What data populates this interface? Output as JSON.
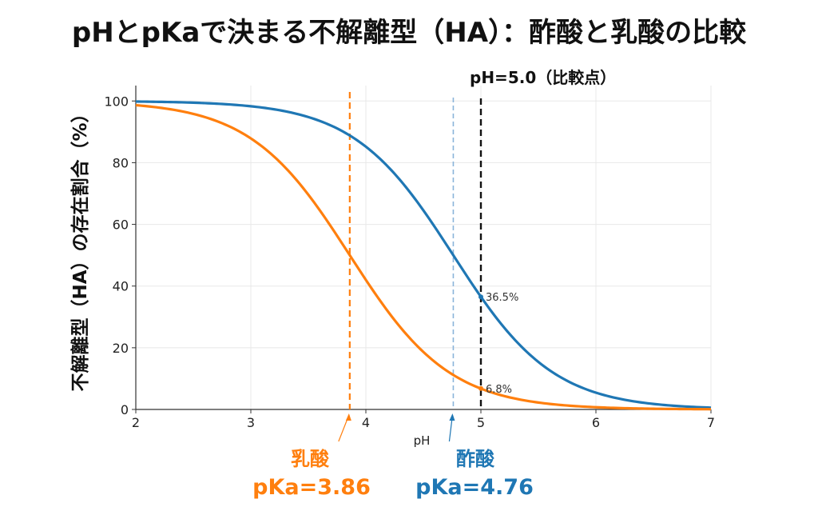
{
  "title": "pHとpKaで決まる不解離型（HA）：酢酸と乳酸の比較",
  "colors": {
    "acetic": "#1f77b4",
    "lactic": "#ff7f0e",
    "acetic_marker": "#8ab4da",
    "reference": "#111111",
    "grid": "#e8e8e8",
    "axis": "#333333"
  },
  "chart_data": {
    "type": "line",
    "xlabel": "pH",
    "ylabel": "不解離型（HA）の存在割合（%）",
    "xlim": [
      2,
      7
    ],
    "ylim": [
      0,
      105
    ],
    "xticks": [
      2,
      3,
      4,
      5,
      6,
      7
    ],
    "yticks": [
      0,
      20,
      40,
      60,
      80,
      100
    ],
    "grid": true,
    "series": [
      {
        "name": "酢酸",
        "pKa": 4.76,
        "x": [
          2.0,
          2.5,
          3.0,
          3.5,
          4.0,
          4.5,
          4.76,
          5.0,
          5.5,
          6.0,
          6.5,
          7.0
        ],
        "y": [
          99.8,
          99.5,
          98.3,
          94.8,
          85.2,
          64.5,
          50.0,
          36.5,
          15.4,
          5.4,
          1.8,
          0.6
        ]
      },
      {
        "name": "乳酸",
        "pKa": 3.86,
        "x": [
          2.0,
          2.5,
          3.0,
          3.5,
          3.86,
          4.0,
          4.5,
          5.0,
          5.5,
          6.0,
          6.5,
          7.0
        ],
        "y": [
          98.6,
          95.8,
          87.9,
          69.6,
          50.0,
          42.0,
          18.6,
          6.8,
          2.2,
          0.7,
          0.2,
          0.1
        ]
      }
    ],
    "vertical_lines": [
      {
        "name": "lactic-pka",
        "x": 3.86,
        "style": "dashed",
        "series": "乳酸"
      },
      {
        "name": "acetic-pka",
        "x": 4.76,
        "style": "dashed",
        "series": "酢酸"
      },
      {
        "name": "reference-ph",
        "x": 5.0,
        "style": "dashed",
        "label": "pH=5.0（比較点）"
      }
    ],
    "annotations": [
      {
        "text": "36.5%",
        "x": 5.0,
        "y": 36.5,
        "series": "酢酸"
      },
      {
        "text": "6.8%",
        "x": 5.0,
        "y": 6.8,
        "series": "乳酸"
      }
    ],
    "callouts": [
      {
        "name": "乳酸",
        "pka_text": "pKa=3.86",
        "x": 3.86,
        "series": "乳酸"
      },
      {
        "name": "酢酸",
        "pka_text": "pKa=4.76",
        "x": 4.76,
        "series": "酢酸"
      }
    ]
  }
}
